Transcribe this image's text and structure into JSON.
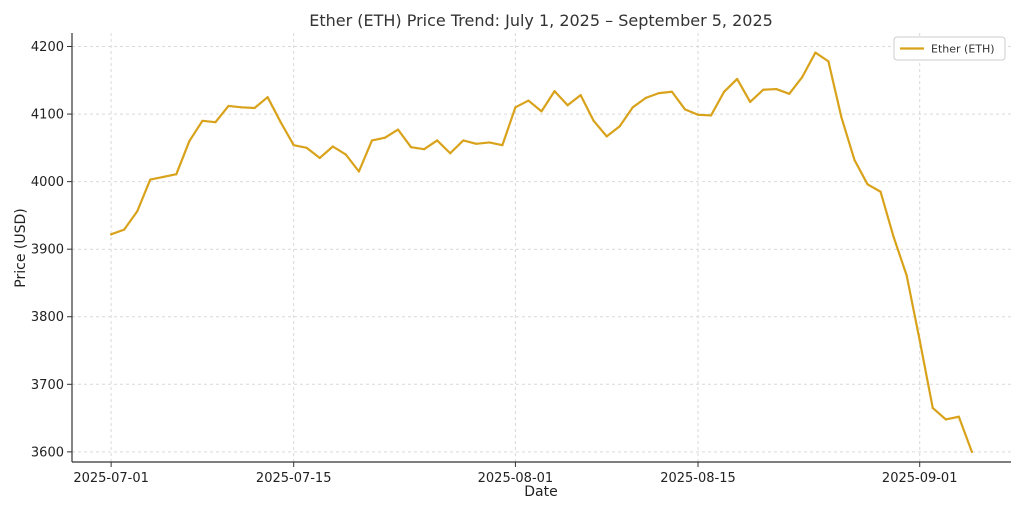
{
  "chart_data": {
    "type": "line",
    "title": "Ether (ETH) Price Trend: July 1, 2025 – September 5, 2025",
    "xlabel": "Date",
    "ylabel": "Price (USD)",
    "x_range": [
      "2025-06-28",
      "2025-09-08"
    ],
    "ylim": [
      3585,
      4220
    ],
    "x_ticks": [
      "2025-07-01",
      "2025-07-15",
      "2025-08-01",
      "2025-08-15",
      "2025-09-01"
    ],
    "y_ticks": [
      3600,
      3700,
      3800,
      3900,
      4000,
      4100,
      4200
    ],
    "grid": true,
    "legend_position": "top-right",
    "series": [
      {
        "name": "Ether (ETH)",
        "color": "#D9A21B",
        "x": [
          "2025-07-01",
          "2025-07-02",
          "2025-07-03",
          "2025-07-04",
          "2025-07-05",
          "2025-07-06",
          "2025-07-07",
          "2025-07-08",
          "2025-07-09",
          "2025-07-10",
          "2025-07-11",
          "2025-07-12",
          "2025-07-13",
          "2025-07-14",
          "2025-07-15",
          "2025-07-16",
          "2025-07-17",
          "2025-07-18",
          "2025-07-19",
          "2025-07-20",
          "2025-07-21",
          "2025-07-22",
          "2025-07-23",
          "2025-07-24",
          "2025-07-25",
          "2025-07-26",
          "2025-07-27",
          "2025-07-28",
          "2025-07-29",
          "2025-07-30",
          "2025-07-31",
          "2025-08-01",
          "2025-08-02",
          "2025-08-03",
          "2025-08-04",
          "2025-08-05",
          "2025-08-06",
          "2025-08-07",
          "2025-08-08",
          "2025-08-09",
          "2025-08-10",
          "2025-08-11",
          "2025-08-12",
          "2025-08-13",
          "2025-08-14",
          "2025-08-15",
          "2025-08-16",
          "2025-08-17",
          "2025-08-18",
          "2025-08-19",
          "2025-08-20",
          "2025-08-21",
          "2025-08-22",
          "2025-08-23",
          "2025-08-24",
          "2025-08-25",
          "2025-08-26",
          "2025-08-27",
          "2025-08-28",
          "2025-08-29",
          "2025-08-30",
          "2025-08-31",
          "2025-09-01",
          "2025-09-02",
          "2025-09-03",
          "2025-09-04",
          "2025-09-05"
        ],
        "values": [
          3922,
          3929,
          3956,
          4003,
          4007,
          4011,
          4060,
          4090,
          4088,
          4112,
          4110,
          4109,
          4125,
          4088,
          4054,
          4050,
          4035,
          4052,
          4040,
          4015,
          4061,
          4065,
          4077,
          4051,
          4048,
          4061,
          4042,
          4061,
          4056,
          4058,
          4054,
          4110,
          4120,
          4104,
          4134,
          4113,
          4128,
          4090,
          4067,
          4082,
          4110,
          4124,
          4131,
          4133,
          4107,
          4099,
          4098,
          4133,
          4152,
          4118,
          4136,
          4137,
          4130,
          4155,
          4191,
          4178,
          4095,
          4032,
          3996,
          3985,
          3918,
          3861,
          3765,
          3665,
          3648,
          3652,
          3600
        ]
      }
    ]
  }
}
